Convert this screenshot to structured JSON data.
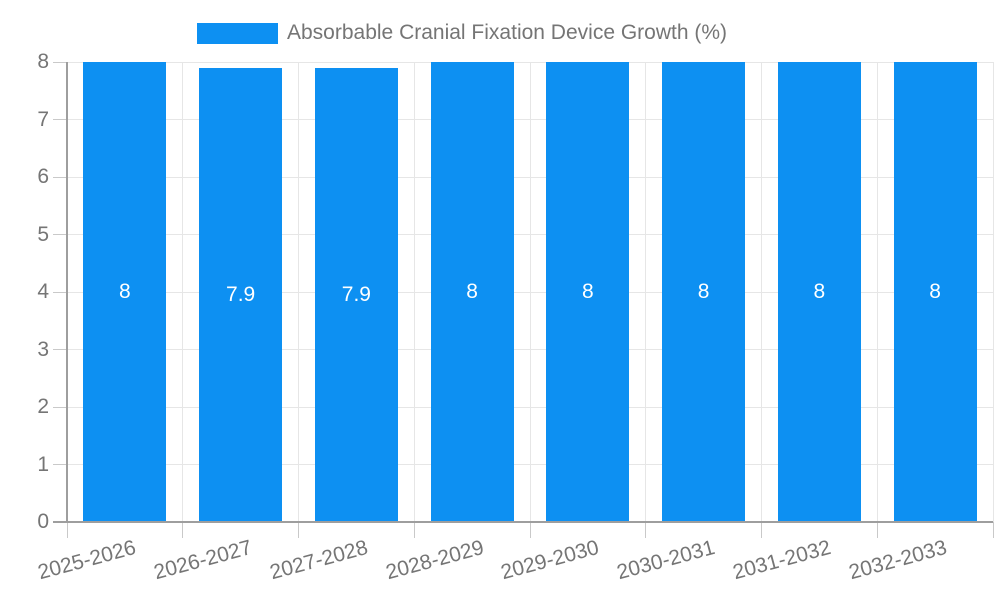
{
  "legend": {
    "label": "Absorbable Cranial Fixation Device Growth (%)"
  },
  "chart_data": {
    "type": "bar",
    "title": "",
    "series_name": "Absorbable Cranial Fixation Device Growth (%)",
    "categories": [
      "2025-2026",
      "2026-2027",
      "2027-2028",
      "2028-2029",
      "2029-2030",
      "2030-2031",
      "2031-2032",
      "2032-2033"
    ],
    "values": [
      8,
      7.9,
      7.9,
      8,
      8,
      8,
      8,
      8
    ],
    "value_labels": [
      "8",
      "7.9",
      "7.9",
      "8",
      "8",
      "8",
      "8",
      "8"
    ],
    "xlabel": "",
    "ylabel": "",
    "ylim": [
      0,
      8
    ],
    "yticks": [
      0,
      1,
      2,
      3,
      4,
      5,
      6,
      7,
      8
    ],
    "grid": true,
    "legend_position": "top",
    "colors": {
      "bar": "#0d90f2",
      "axis": "#9e9e9e",
      "grid": "#e6e6e6",
      "tick": "#c9c9c9",
      "label_text": "#757575",
      "value_label": "#ffffff",
      "background": "#ffffff"
    }
  }
}
